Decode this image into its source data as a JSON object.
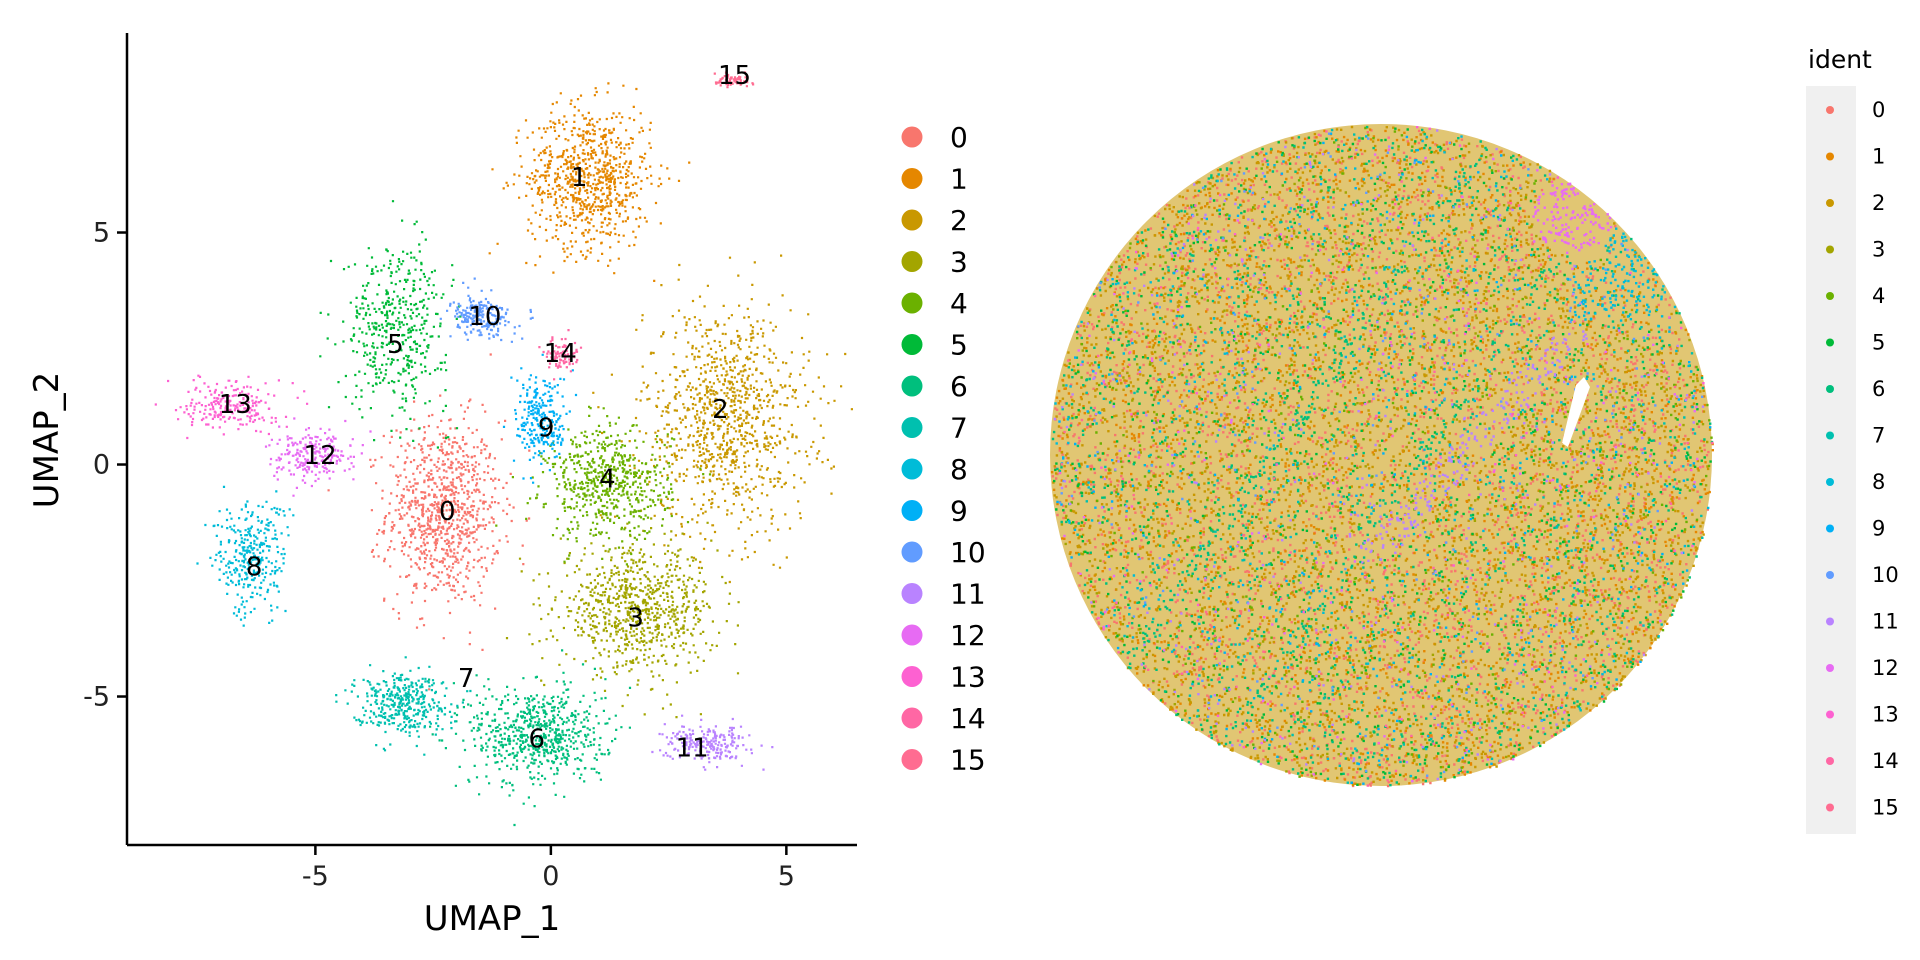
{
  "colors": {
    "palette": [
      "#F8766D",
      "#E58700",
      "#C99800",
      "#A3A500",
      "#6BB100",
      "#00BA38",
      "#00BF7D",
      "#00C0AF",
      "#00BCD8",
      "#00B0F6",
      "#619CFF",
      "#B983FF",
      "#E76BF3",
      "#FD61D1",
      "#FF67A4",
      "#FF6C91"
    ],
    "legend_panel_bg": "#EBEBEB",
    "axis": "#000000"
  },
  "chart_data": [
    {
      "type": "scatter",
      "title": "",
      "xlabel": "UMAP_1",
      "ylabel": "UMAP_2",
      "xlim": [
        -9,
        6.5
      ],
      "ylim": [
        -8.2,
        9.3
      ],
      "x_ticks": [
        -5,
        0,
        5
      ],
      "y_ticks": [
        -5,
        0,
        5
      ],
      "x_tick_labels": [
        "-5",
        "0",
        "5"
      ],
      "y_tick_labels": [
        "-5",
        "0",
        "5"
      ],
      "grid": false,
      "legend": "right",
      "legend_entries": [
        "0",
        "1",
        "2",
        "3",
        "4",
        "5",
        "6",
        "7",
        "8",
        "9",
        "10",
        "11",
        "12",
        "13",
        "14",
        "15"
      ],
      "clusters": [
        {
          "name": "0",
          "center": [
            -2.3,
            -1.0
          ],
          "spread": [
            1.1,
            1.8
          ],
          "label_pos": [
            -2.2,
            -1.0
          ]
        },
        {
          "name": "1",
          "center": [
            0.8,
            6.2
          ],
          "spread": [
            1.2,
            1.4
          ],
          "label_pos": [
            0.6,
            6.2
          ]
        },
        {
          "name": "2",
          "center": [
            3.7,
            1.0
          ],
          "spread": [
            1.6,
            2.2
          ],
          "label_pos": [
            3.6,
            1.2
          ]
        },
        {
          "name": "3",
          "center": [
            1.8,
            -3.1
          ],
          "spread": [
            1.5,
            1.2
          ],
          "label_pos": [
            1.8,
            -3.3
          ]
        },
        {
          "name": "4",
          "center": [
            1.2,
            -0.4
          ],
          "spread": [
            1.2,
            1.1
          ],
          "label_pos": [
            1.2,
            -0.3
          ]
        },
        {
          "name": "5",
          "center": [
            -3.3,
            3.0
          ],
          "spread": [
            1.0,
            1.6
          ],
          "label_pos": [
            -3.3,
            2.6
          ]
        },
        {
          "name": "6",
          "center": [
            -0.3,
            -5.8
          ],
          "spread": [
            1.3,
            1.0
          ],
          "label_pos": [
            -0.3,
            -5.9
          ]
        },
        {
          "name": "7",
          "center": [
            -3.2,
            -5.1
          ],
          "spread": [
            0.9,
            0.6
          ],
          "label_pos": [
            -1.8,
            -4.6
          ]
        },
        {
          "name": "8",
          "center": [
            -6.4,
            -2.0
          ],
          "spread": [
            0.7,
            1.1
          ],
          "label_pos": [
            -6.3,
            -2.2
          ]
        },
        {
          "name": "9",
          "center": [
            -0.2,
            1.0
          ],
          "spread": [
            0.5,
            0.9
          ],
          "label_pos": [
            -0.1,
            0.8
          ]
        },
        {
          "name": "10",
          "center": [
            -1.5,
            3.2
          ],
          "spread": [
            0.6,
            0.4
          ],
          "label_pos": [
            -1.4,
            3.2
          ]
        },
        {
          "name": "11",
          "center": [
            3.3,
            -6.0
          ],
          "spread": [
            0.8,
            0.35
          ],
          "label_pos": [
            3.0,
            -6.1
          ]
        },
        {
          "name": "12",
          "center": [
            -5.1,
            0.2
          ],
          "spread": [
            0.8,
            0.5
          ],
          "label_pos": [
            -4.9,
            0.2
          ]
        },
        {
          "name": "13",
          "center": [
            -6.8,
            1.3
          ],
          "spread": [
            0.9,
            0.5
          ],
          "label_pos": [
            -6.7,
            1.3
          ]
        },
        {
          "name": "14",
          "center": [
            0.2,
            2.4
          ],
          "spread": [
            0.3,
            0.3
          ],
          "label_pos": [
            0.2,
            2.4
          ]
        },
        {
          "name": "15",
          "center": [
            3.8,
            8.3
          ],
          "spread": [
            0.4,
            0.12
          ],
          "label_pos": [
            3.9,
            8.4
          ]
        }
      ]
    },
    {
      "type": "scatter",
      "title": "",
      "xlabel": "",
      "ylabel": "",
      "shape": "circle",
      "grid": false,
      "legend": "right",
      "legend_title": "ident",
      "legend_entries": [
        "0",
        "1",
        "2",
        "3",
        "4",
        "5",
        "6",
        "7",
        "8",
        "9",
        "10",
        "11",
        "12",
        "13",
        "14",
        "15"
      ],
      "dominant_clusters": [
        "2",
        "1",
        "0",
        "5",
        "6"
      ],
      "regions": [
        {
          "name": "13",
          "desc": "upper-right patch"
        },
        {
          "name": "8",
          "desc": "right edge band"
        },
        {
          "name": "11",
          "desc": "diagonal band"
        },
        {
          "name": "6",
          "desc": "diagonal streak"
        }
      ]
    }
  ]
}
